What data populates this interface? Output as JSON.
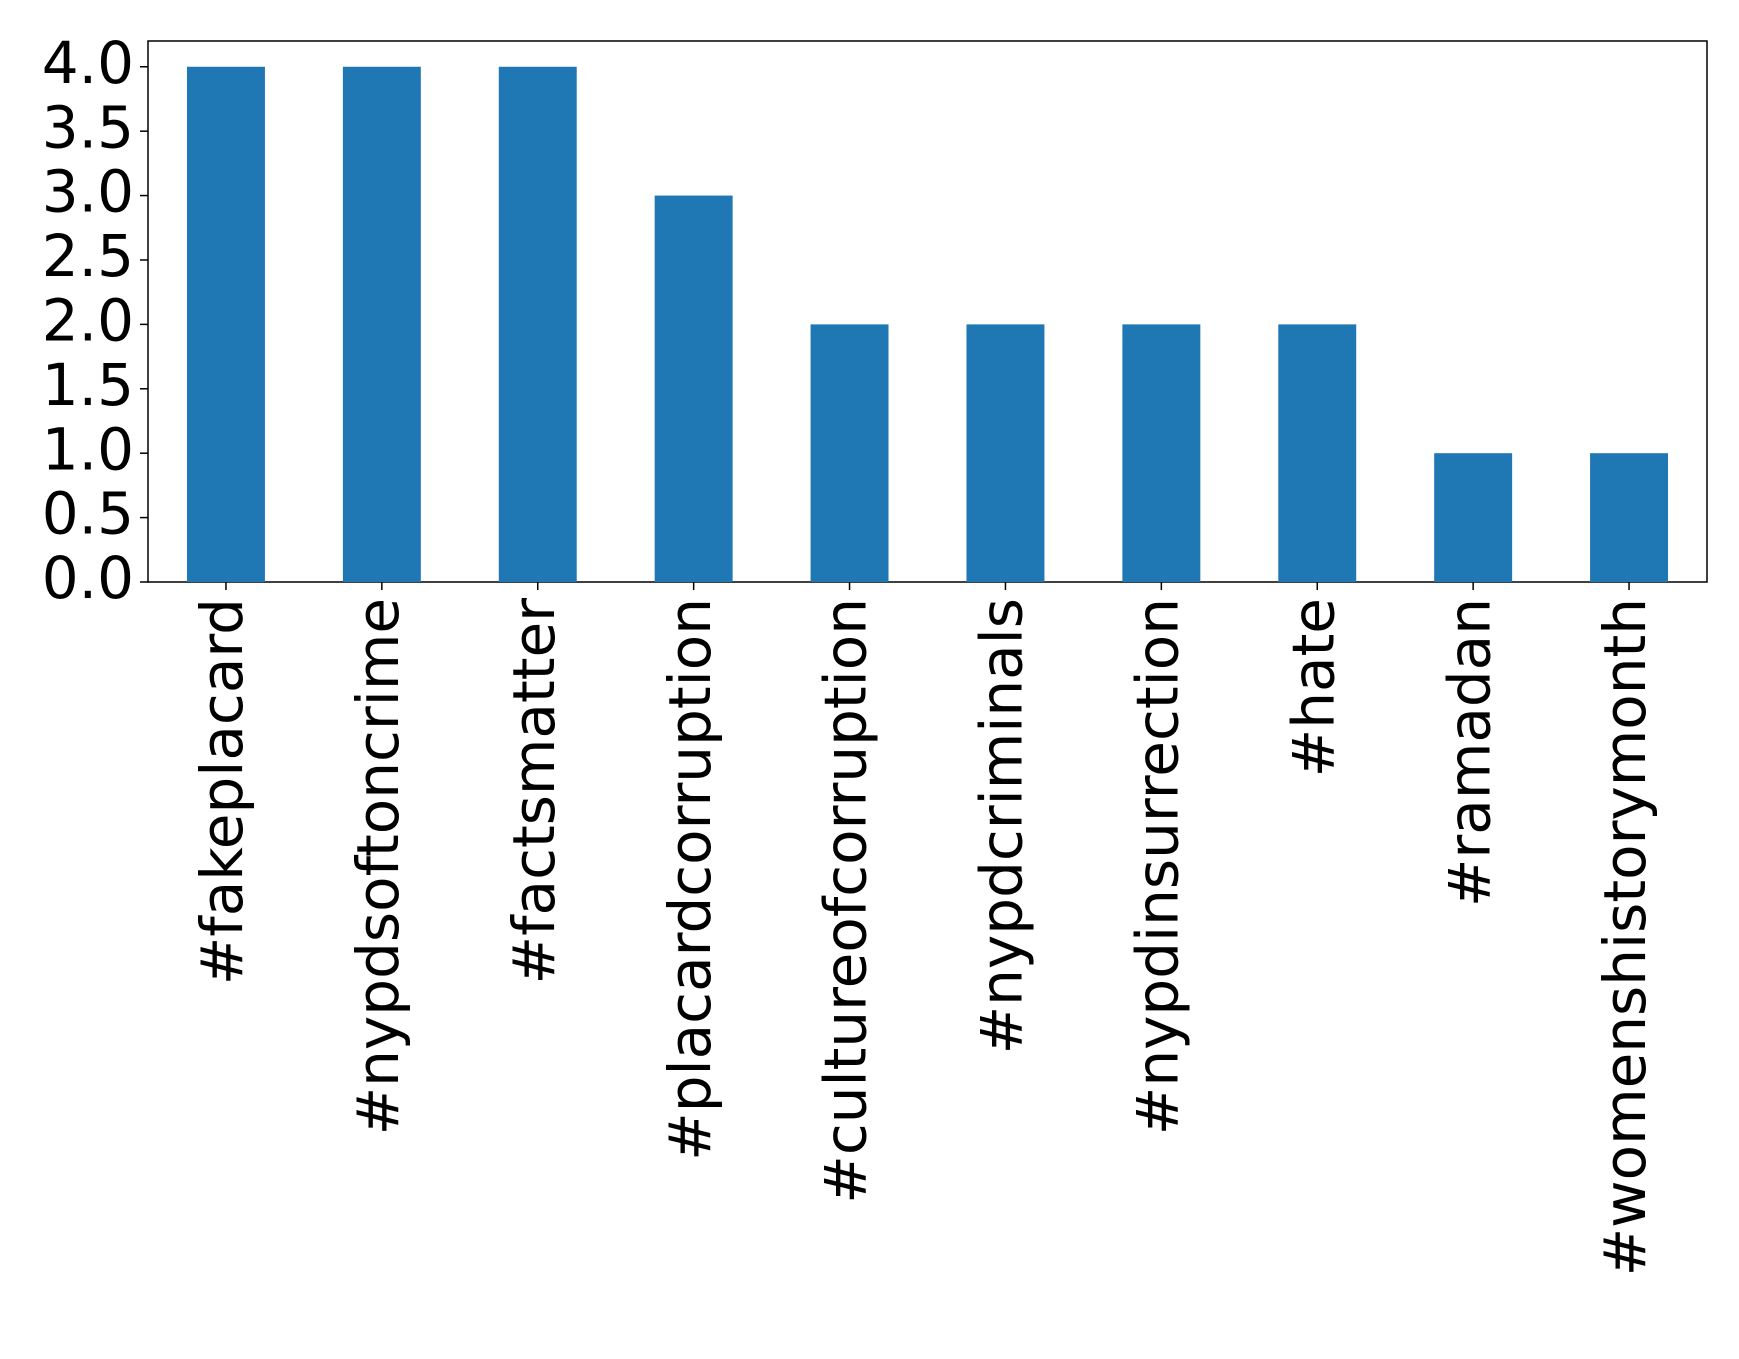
{
  "chart_data": {
    "type": "bar",
    "categories": [
      "#fakeplacard",
      "#nypdsoftoncrime",
      "#factsmatter",
      "#placardcorruption",
      "#cultureofcorruption",
      "#nypdcriminals",
      "#nypdinsurrection",
      "#hate",
      "#ramadan",
      "#womenshistorymonth"
    ],
    "values": [
      4,
      4,
      4,
      3,
      2,
      2,
      2,
      2,
      1,
      1
    ],
    "color": "#1f77b4",
    "ylim": [
      0,
      4.2
    ],
    "yticks": [
      {
        "value": 0,
        "label": "0.0"
      },
      {
        "value": 0.5,
        "label": "0.5"
      },
      {
        "value": 1,
        "label": "1.0"
      },
      {
        "value": 1.5,
        "label": "1.5"
      },
      {
        "value": 2,
        "label": "2.0"
      },
      {
        "value": 2.5,
        "label": "2.5"
      },
      {
        "value": 3,
        "label": "3.0"
      },
      {
        "value": 3.5,
        "label": "3.5"
      },
      {
        "value": 4,
        "label": "4.0"
      }
    ],
    "grid": false
  }
}
